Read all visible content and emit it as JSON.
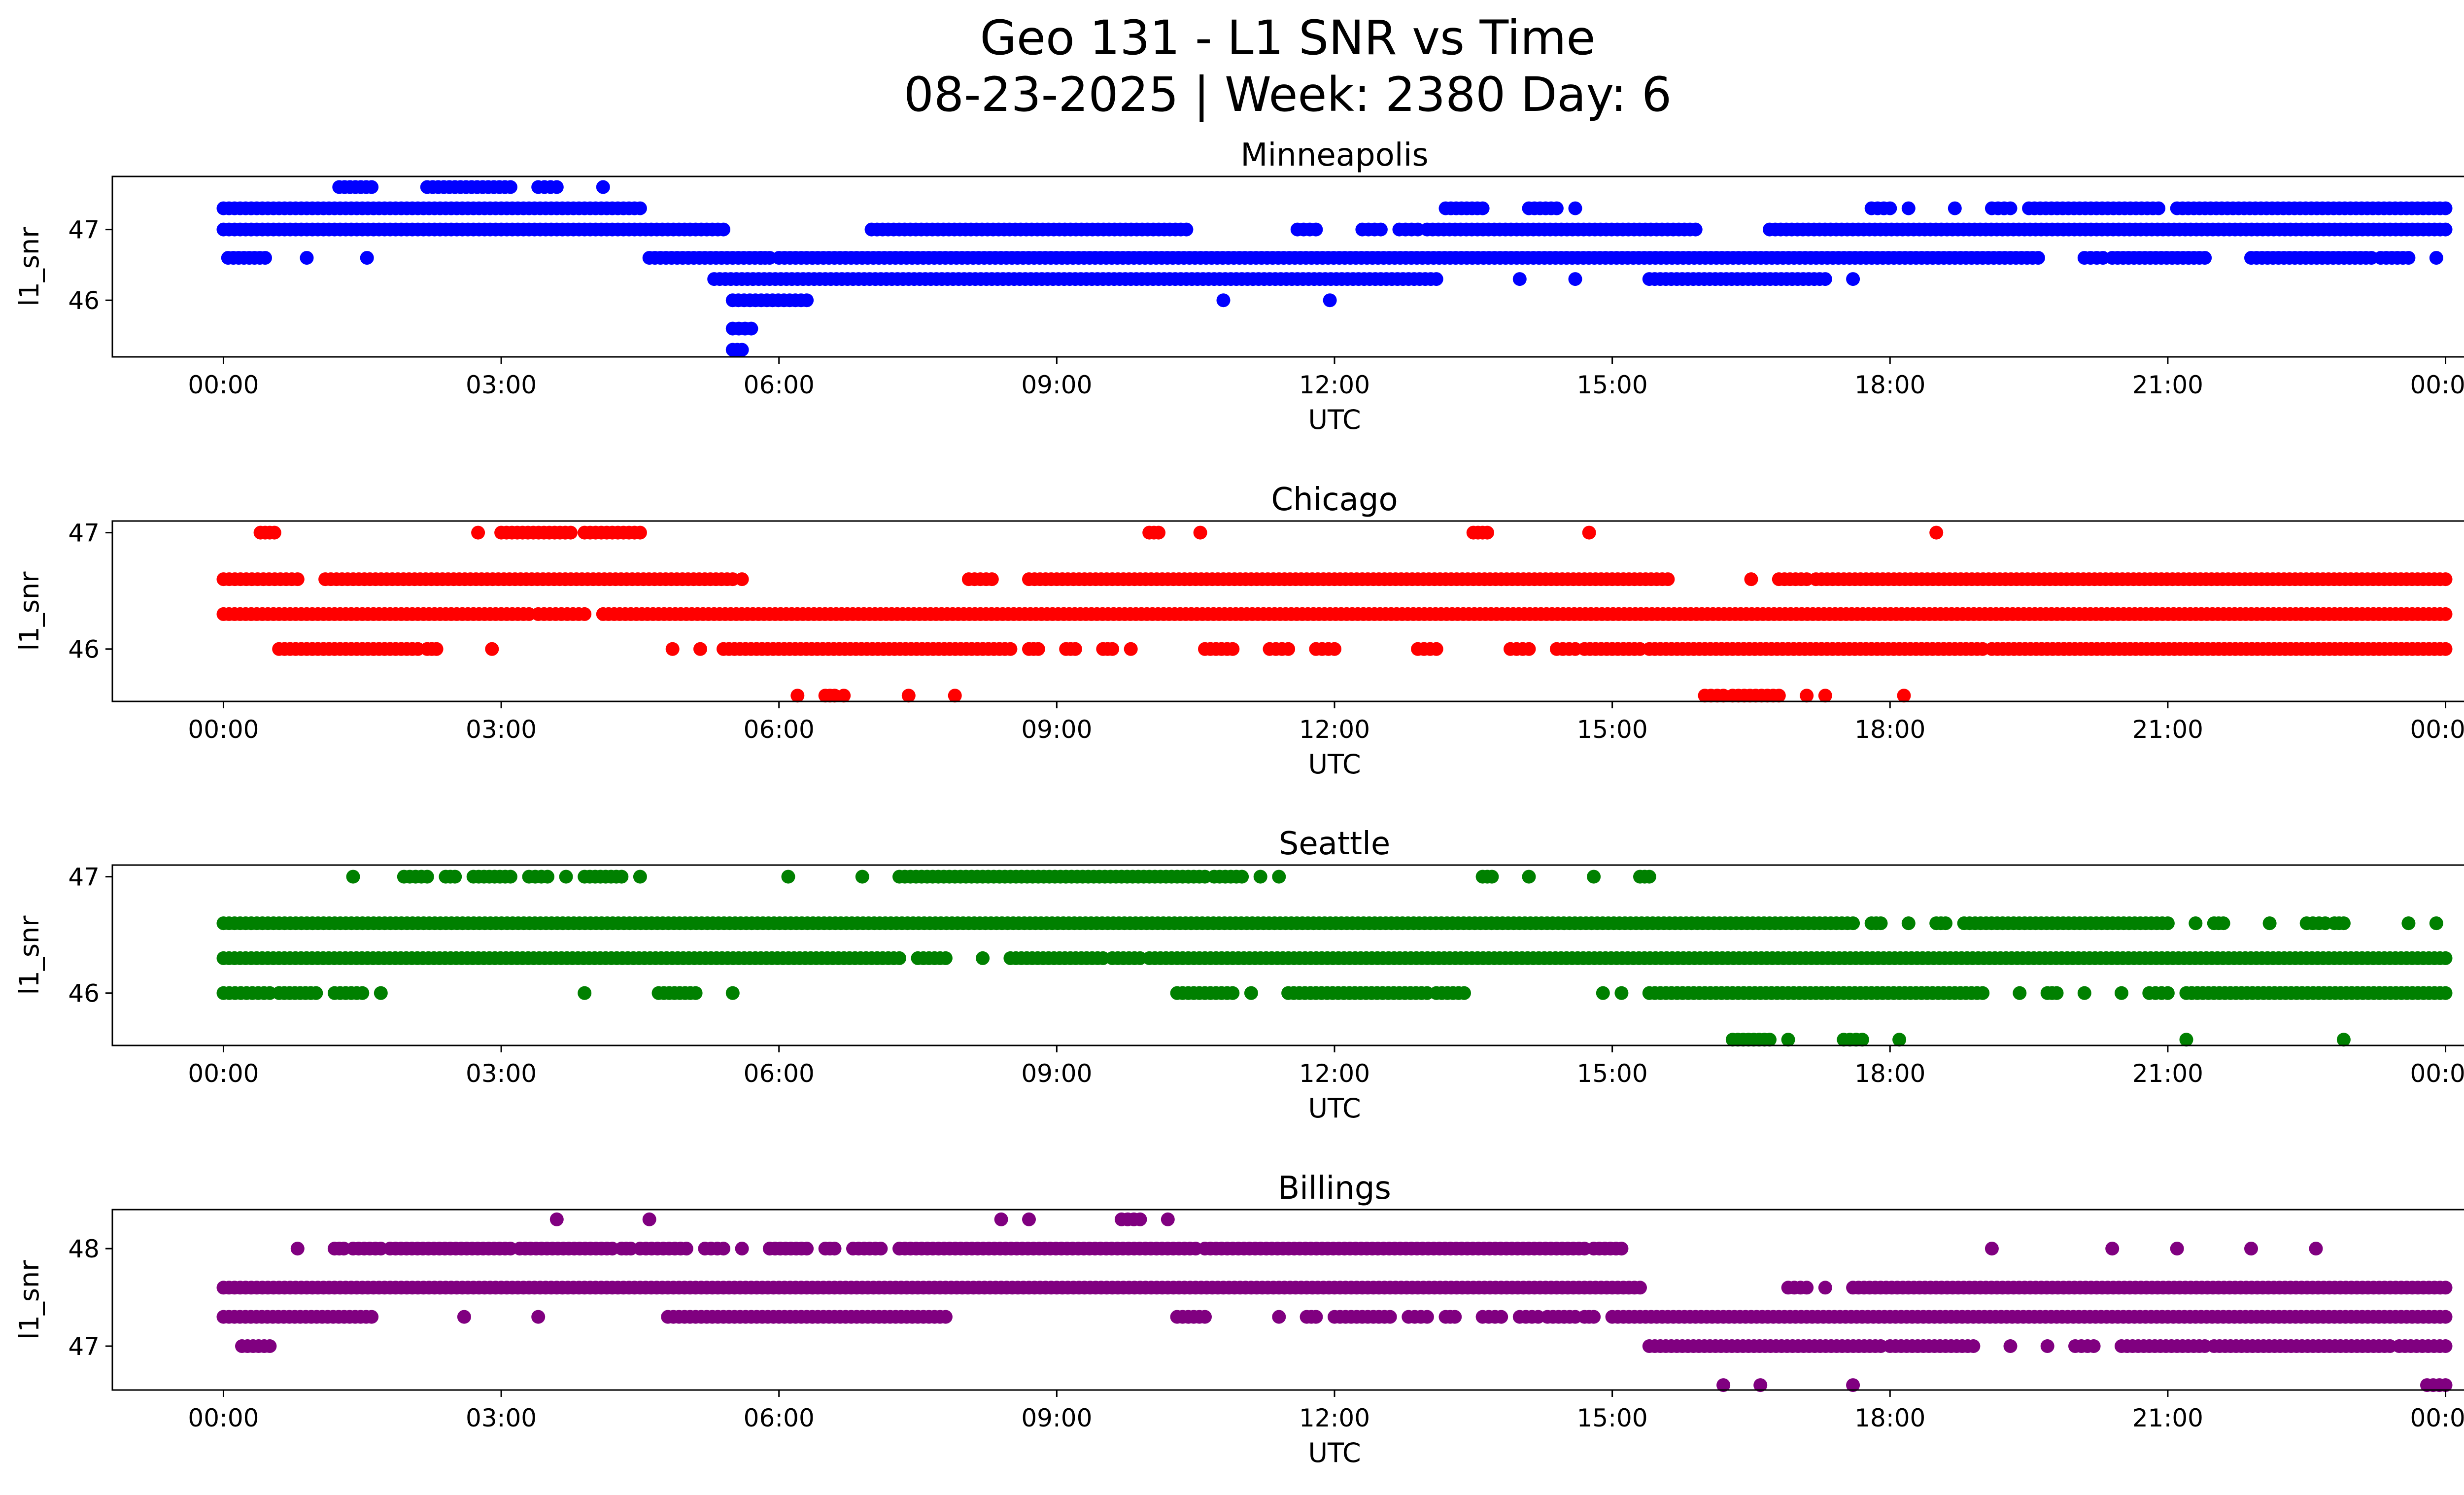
{
  "figure": {
    "title_line1": "Geo 131 - L1 SNR vs Time",
    "title_line2": "08-23-2025 | Week: 2380 Day: 6"
  },
  "chart_data": [
    {
      "type": "scatter",
      "title": "Minneapolis",
      "xlabel": "UTC",
      "ylabel": "l1_snr",
      "color": "#0000ff",
      "x_ticks": [
        "00:00",
        "03:00",
        "06:00",
        "09:00",
        "12:00",
        "15:00",
        "18:00",
        "21:00",
        "00:00"
      ],
      "xlim_hours": [
        -1.2,
        25.2
      ],
      "y_ticks": [
        46,
        47
      ],
      "ylim": [
        45.2,
        47.75
      ],
      "series": [
        {
          "y": 47.6,
          "ranges": [
            [
              1.25,
              1.6
            ],
            [
              2.2,
              3.1
            ],
            [
              3.4,
              3.6
            ],
            [
              4.1,
              4.1
            ]
          ]
        },
        {
          "y": 47.3,
          "ranges": [
            [
              0.0,
              4.5
            ],
            [
              13.2,
              13.6
            ],
            [
              14.1,
              14.4
            ],
            [
              14.6,
              14.6
            ],
            [
              17.8,
              18.0
            ],
            [
              18.2,
              18.2
            ],
            [
              18.7,
              18.7
            ],
            [
              19.1,
              19.3
            ],
            [
              19.5,
              20.9
            ],
            [
              21.1,
              24.0
            ]
          ]
        },
        {
          "y": 47.0,
          "ranges": [
            [
              0.0,
              5.4
            ],
            [
              7.0,
              10.4
            ],
            [
              11.6,
              11.8
            ],
            [
              12.3,
              12.5
            ],
            [
              12.7,
              12.9
            ],
            [
              13.0,
              15.9
            ],
            [
              16.7,
              24.0
            ]
          ]
        },
        {
          "y": 46.6,
          "ranges": [
            [
              0.05,
              0.45
            ],
            [
              0.9,
              0.9
            ],
            [
              1.55,
              1.55
            ],
            [
              4.6,
              5.8
            ],
            [
              5.8,
              5.9
            ],
            [
              6.0,
              19.6
            ],
            [
              20.1,
              20.3
            ],
            [
              20.4,
              21.4
            ],
            [
              21.9,
              23.2
            ],
            [
              23.3,
              23.6
            ],
            [
              23.9,
              23.9
            ]
          ]
        },
        {
          "y": 46.3,
          "ranges": [
            [
              5.3,
              13.1
            ],
            [
              14.0,
              14.0
            ],
            [
              14.6,
              14.6
            ],
            [
              15.4,
              17.3
            ],
            [
              17.6,
              17.6
            ]
          ]
        },
        {
          "y": 46.0,
          "ranges": [
            [
              5.5,
              6.3
            ],
            [
              10.8,
              10.8
            ],
            [
              11.95,
              11.95
            ]
          ]
        },
        {
          "y": 45.6,
          "ranges": [
            [
              5.5,
              5.7
            ]
          ]
        },
        {
          "y": 45.3,
          "ranges": [
            [
              5.5,
              5.6
            ]
          ]
        }
      ]
    },
    {
      "type": "scatter",
      "title": "Chicago",
      "xlabel": "UTC",
      "ylabel": "l1_snr",
      "color": "#ff0000",
      "x_ticks": [
        "00:00",
        "03:00",
        "06:00",
        "09:00",
        "12:00",
        "15:00",
        "18:00",
        "21:00",
        "00:00"
      ],
      "xlim_hours": [
        -1.2,
        25.2
      ],
      "y_ticks": [
        46,
        47
      ],
      "ylim": [
        45.55,
        47.1
      ],
      "series": [
        {
          "y": 47.0,
          "ranges": [
            [
              0.4,
              0.55
            ],
            [
              2.75,
              2.75
            ],
            [
              3.0,
              3.75
            ],
            [
              3.9,
              4.5
            ],
            [
              10.0,
              10.1
            ],
            [
              10.55,
              10.55
            ],
            [
              13.5,
              13.65
            ],
            [
              14.75,
              14.75
            ],
            [
              18.5,
              18.5
            ]
          ]
        },
        {
          "y": 46.6,
          "ranges": [
            [
              0.0,
              0.8
            ],
            [
              1.1,
              5.5
            ],
            [
              5.6,
              5.6
            ],
            [
              8.05,
              8.3
            ],
            [
              8.7,
              15.6
            ],
            [
              16.5,
              16.5
            ],
            [
              16.8,
              17.1
            ],
            [
              17.2,
              24.0
            ]
          ]
        },
        {
          "y": 46.3,
          "ranges": [
            [
              0.0,
              3.3
            ],
            [
              3.4,
              3.9
            ],
            [
              4.1,
              24.0
            ]
          ]
        },
        {
          "y": 46.0,
          "ranges": [
            [
              0.6,
              2.1
            ],
            [
              2.2,
              2.3
            ],
            [
              2.9,
              2.9
            ],
            [
              4.85,
              4.85
            ],
            [
              5.15,
              5.15
            ],
            [
              5.4,
              8.5
            ],
            [
              8.7,
              8.8
            ],
            [
              9.1,
              9.2
            ],
            [
              9.5,
              9.6
            ],
            [
              9.8,
              9.8
            ],
            [
              10.6,
              10.9
            ],
            [
              11.3,
              11.5
            ],
            [
              11.8,
              12.0
            ],
            [
              12.9,
              13.1
            ],
            [
              13.9,
              14.1
            ],
            [
              14.4,
              14.6
            ],
            [
              14.7,
              15.3
            ],
            [
              15.4,
              19.0
            ],
            [
              19.1,
              24.0
            ]
          ]
        },
        {
          "y": 45.6,
          "ranges": [
            [
              6.2,
              6.2
            ],
            [
              6.5,
              6.6
            ],
            [
              6.7,
              6.7
            ],
            [
              7.4,
              7.4
            ],
            [
              7.9,
              7.9
            ],
            [
              16.0,
              16.2
            ],
            [
              16.3,
              16.8
            ],
            [
              17.1,
              17.1
            ],
            [
              17.3,
              17.3
            ],
            [
              18.15,
              18.15
            ]
          ]
        }
      ]
    },
    {
      "type": "scatter",
      "title": "Seattle",
      "xlabel": "UTC",
      "ylabel": "l1_snr",
      "color": "#008000",
      "x_ticks": [
        "00:00",
        "03:00",
        "06:00",
        "09:00",
        "12:00",
        "15:00",
        "18:00",
        "21:00",
        "00:00"
      ],
      "xlim_hours": [
        -1.2,
        25.2
      ],
      "y_ticks": [
        46,
        47
      ],
      "ylim": [
        45.55,
        47.1
      ],
      "series": [
        {
          "y": 47.0,
          "ranges": [
            [
              1.4,
              1.4
            ],
            [
              1.95,
              2.2
            ],
            [
              2.4,
              2.5
            ],
            [
              2.7,
              3.1
            ],
            [
              3.3,
              3.5
            ],
            [
              3.7,
              3.7
            ],
            [
              3.9,
              4.3
            ],
            [
              4.5,
              4.5
            ],
            [
              6.1,
              6.1
            ],
            [
              6.9,
              6.9
            ],
            [
              7.3,
              10.6
            ],
            [
              10.7,
              11.0
            ],
            [
              11.2,
              11.2
            ],
            [
              11.4,
              11.4
            ],
            [
              13.6,
              13.7
            ],
            [
              14.1,
              14.1
            ],
            [
              14.8,
              14.8
            ],
            [
              15.3,
              15.4
            ]
          ]
        },
        {
          "y": 46.6,
          "ranges": [
            [
              0.0,
              17.6
            ],
            [
              17.8,
              17.9
            ],
            [
              18.2,
              18.2
            ],
            [
              18.5,
              18.6
            ],
            [
              18.8,
              21.0
            ],
            [
              21.3,
              21.3
            ],
            [
              21.5,
              21.6
            ],
            [
              22.1,
              22.1
            ],
            [
              22.5,
              22.7
            ],
            [
              22.8,
              22.9
            ],
            [
              23.6,
              23.6
            ],
            [
              23.9,
              23.9
            ]
          ]
        },
        {
          "y": 46.3,
          "ranges": [
            [
              0.0,
              7.3
            ],
            [
              7.5,
              7.8
            ],
            [
              8.2,
              8.2
            ],
            [
              8.5,
              9.5
            ],
            [
              9.6,
              9.9
            ],
            [
              10.0,
              24.0
            ]
          ]
        },
        {
          "y": 46.0,
          "ranges": [
            [
              0.0,
              0.5
            ],
            [
              0.6,
              1.0
            ],
            [
              1.2,
              1.5
            ],
            [
              1.7,
              1.7
            ],
            [
              3.9,
              3.9
            ],
            [
              4.7,
              5.1
            ],
            [
              5.5,
              5.5
            ],
            [
              10.3,
              10.9
            ],
            [
              11.1,
              11.1
            ],
            [
              11.5,
              13.0
            ],
            [
              13.1,
              13.4
            ],
            [
              14.9,
              14.9
            ],
            [
              15.1,
              15.1
            ],
            [
              15.4,
              19.0
            ],
            [
              19.4,
              19.4
            ],
            [
              19.7,
              19.8
            ],
            [
              20.1,
              20.1
            ],
            [
              20.5,
              20.5
            ],
            [
              20.8,
              21.0
            ],
            [
              21.2,
              24.0
            ]
          ]
        },
        {
          "y": 45.6,
          "ranges": [
            [
              16.3,
              16.7
            ],
            [
              16.9,
              16.9
            ],
            [
              17.5,
              17.7
            ],
            [
              18.1,
              18.1
            ],
            [
              21.2,
              21.2
            ],
            [
              22.9,
              22.9
            ]
          ]
        }
      ]
    },
    {
      "type": "scatter",
      "title": "Billings",
      "xlabel": "UTC",
      "ylabel": "l1_snr",
      "color": "#800080",
      "x_ticks": [
        "00:00",
        "03:00",
        "06:00",
        "09:00",
        "12:00",
        "15:00",
        "18:00",
        "21:00",
        "00:00"
      ],
      "xlim_hours": [
        -1.2,
        25.2
      ],
      "y_ticks": [
        47,
        48
      ],
      "ylim": [
        46.55,
        48.4
      ],
      "series": [
        {
          "y": 48.3,
          "ranges": [
            [
              3.6,
              3.6
            ],
            [
              4.6,
              4.6
            ],
            [
              8.4,
              8.4
            ],
            [
              8.7,
              8.7
            ],
            [
              9.7,
              9.9
            ],
            [
              10.2,
              10.2
            ]
          ]
        },
        {
          "y": 48.0,
          "ranges": [
            [
              0.8,
              0.8
            ],
            [
              1.2,
              1.3
            ],
            [
              1.4,
              1.7
            ],
            [
              1.8,
              3.1
            ],
            [
              3.2,
              4.2
            ],
            [
              4.3,
              4.4
            ],
            [
              4.5,
              5.0
            ],
            [
              5.2,
              5.4
            ],
            [
              5.6,
              5.6
            ],
            [
              5.9,
              6.3
            ],
            [
              6.5,
              6.6
            ],
            [
              6.8,
              7.1
            ],
            [
              7.3,
              10.5
            ],
            [
              10.6,
              14.7
            ],
            [
              14.8,
              15.1
            ],
            [
              19.1,
              19.1
            ],
            [
              20.4,
              20.4
            ],
            [
              21.1,
              21.1
            ],
            [
              21.9,
              21.9
            ],
            [
              22.6,
              22.6
            ]
          ]
        },
        {
          "y": 47.6,
          "ranges": [
            [
              0.0,
              15.3
            ],
            [
              16.9,
              17.1
            ],
            [
              17.3,
              17.3
            ],
            [
              17.6,
              24.0
            ]
          ]
        },
        {
          "y": 47.3,
          "ranges": [
            [
              0.0,
              1.6
            ],
            [
              2.6,
              2.6
            ],
            [
              3.4,
              3.4
            ],
            [
              4.8,
              7.8
            ],
            [
              10.3,
              10.6
            ],
            [
              11.4,
              11.4
            ],
            [
              11.7,
              11.8
            ],
            [
              12.0,
              12.6
            ],
            [
              12.8,
              13.0
            ],
            [
              13.2,
              13.3
            ],
            [
              13.6,
              13.8
            ],
            [
              14.0,
              14.2
            ],
            [
              14.3,
              14.6
            ],
            [
              14.7,
              14.8
            ],
            [
              15.0,
              24.0
            ]
          ]
        },
        {
          "y": 47.0,
          "ranges": [
            [
              0.2,
              0.5
            ],
            [
              15.4,
              17.9
            ],
            [
              18.0,
              18.9
            ],
            [
              19.3,
              19.3
            ],
            [
              19.7,
              19.7
            ],
            [
              20.0,
              20.2
            ],
            [
              20.5,
              21.4
            ],
            [
              21.5,
              23.4
            ],
            [
              23.5,
              24.0
            ]
          ]
        },
        {
          "y": 46.6,
          "ranges": [
            [
              16.2,
              16.2
            ],
            [
              16.6,
              16.6
            ],
            [
              17.6,
              17.6
            ],
            [
              23.8,
              24.0
            ]
          ]
        }
      ]
    }
  ]
}
